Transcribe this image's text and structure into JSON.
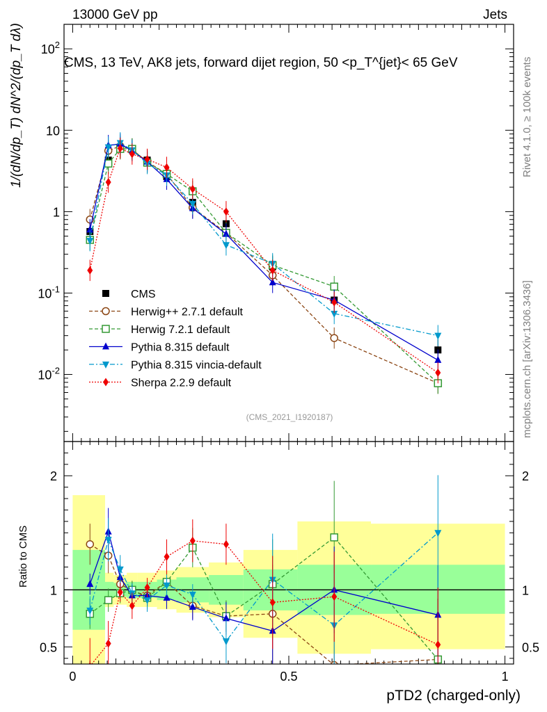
{
  "header": {
    "energy_label": "13000 GeV pp",
    "category_label": "Jets",
    "plot_title": "CMS, 13 TeV, AK8 jets, forward dijet region, 50 <p_T^{jet}< 65 GeV",
    "analysis_id": "(CMS_2021_I1920187)",
    "rivet_label": "Rivet 4.1.0, ≥ 100k events",
    "site_label": "mcplots.cern.ch [arXiv:1306.3436]"
  },
  "chart_data": [
    {
      "type": "scatter",
      "panel": "main",
      "ylabel": "1/(dN/dp_T) dN^2/(dp_T dλ)",
      "yscale": "log",
      "ylim": [
        0.0015,
        200
      ],
      "xlim": [
        -0.02,
        1.02
      ],
      "ytick_labels": [
        "10^{-2}",
        "10^{-1}",
        "1",
        "10",
        "10^{2}"
      ],
      "x": [
        0.04,
        0.0825,
        0.11,
        0.1375,
        0.1725,
        0.2175,
        0.2775,
        0.355,
        0.4625,
        0.605,
        0.845
      ],
      "series": [
        {
          "name": "CMS",
          "color": "#000000",
          "style": "data",
          "marker": "square",
          "values": [
            0.57,
            4.3,
            6.1,
            5.9,
            4.3,
            2.7,
            1.3,
            0.71,
            0.21,
            0.082,
            0.02
          ]
        },
        {
          "name": "Herwig++ 2.7.1 default",
          "color": "#8B4513",
          "style": "dashed",
          "marker": "open-circle",
          "values": [
            0.8,
            5.6,
            6.4,
            5.8,
            4.1,
            2.9,
            1.12,
            0.55,
            0.165,
            0.028,
            0.0078
          ]
        },
        {
          "name": "Herwig 7.2.1 default",
          "color": "#339933",
          "style": "dashed",
          "marker": "open-square",
          "values": [
            0.45,
            3.9,
            5.9,
            5.9,
            4.0,
            2.9,
            1.78,
            0.55,
            0.22,
            0.12,
            0.0078
          ]
        },
        {
          "name": "Pythia 8.315 default",
          "color": "#0000CC",
          "style": "solid",
          "marker": "triangle-up",
          "values": [
            0.6,
            6.5,
            6.8,
            5.6,
            4.1,
            2.5,
            1.1,
            0.53,
            0.135,
            0.082,
            0.015
          ]
        },
        {
          "name": "Pythia 8.315 vincia-default",
          "color": "#0099CC",
          "style": "dashdot",
          "marker": "triangle-down",
          "values": [
            0.44,
            6.2,
            7.0,
            5.7,
            3.9,
            2.8,
            1.25,
            0.39,
            0.23,
            0.056,
            0.03
          ]
        },
        {
          "name": "Sherpa 2.2.9 default",
          "color": "#EE0000",
          "style": "dotted",
          "marker": "diamond",
          "values": [
            0.19,
            2.3,
            6.0,
            5.1,
            4.4,
            3.5,
            1.9,
            1.0,
            0.19,
            0.077,
            0.0105
          ]
        }
      ]
    },
    {
      "type": "scatter",
      "panel": "ratio",
      "ylabel": "Ratio to CMS",
      "xlabel": "pTD2 (charged-only)",
      "ylim": [
        0.35,
        2.3
      ],
      "yticks": [
        0.5,
        1,
        2
      ],
      "ytick_labels": [
        "0.5",
        "1",
        "2"
      ],
      "xticks": [
        0,
        0.5,
        1
      ],
      "xtick_labels": [
        "0",
        "0.5",
        "1"
      ],
      "reference_line": 1,
      "bands": [
        {
          "x0": 0.0,
          "x1": 0.075,
          "stat_sys_lo": 0.0,
          "stat_sys_hi": 1.83,
          "stat_lo": 0.65,
          "stat_hi": 1.35
        },
        {
          "x0": 0.075,
          "x1": 0.095,
          "stat_sys_lo": 0.85,
          "stat_sys_hi": 1.15,
          "stat_lo": 0.93,
          "stat_hi": 1.07
        },
        {
          "x0": 0.095,
          "x1": 0.125,
          "stat_sys_lo": 0.87,
          "stat_sys_hi": 1.13,
          "stat_lo": 0.94,
          "stat_hi": 1.06
        },
        {
          "x0": 0.125,
          "x1": 0.15,
          "stat_sys_lo": 0.85,
          "stat_sys_hi": 1.15,
          "stat_lo": 0.93,
          "stat_hi": 1.07
        },
        {
          "x0": 0.15,
          "x1": 0.195,
          "stat_sys_lo": 0.85,
          "stat_sys_hi": 1.15,
          "stat_lo": 0.93,
          "stat_hi": 1.07
        },
        {
          "x0": 0.195,
          "x1": 0.24,
          "stat_sys_lo": 0.83,
          "stat_sys_hi": 1.17,
          "stat_lo": 0.91,
          "stat_hi": 1.09
        },
        {
          "x0": 0.24,
          "x1": 0.315,
          "stat_sys_lo": 0.8,
          "stat_sys_hi": 1.2,
          "stat_lo": 0.89,
          "stat_hi": 1.11
        },
        {
          "x0": 0.315,
          "x1": 0.395,
          "stat_sys_lo": 0.76,
          "stat_sys_hi": 1.24,
          "stat_lo": 0.87,
          "stat_hi": 1.13
        },
        {
          "x0": 0.395,
          "x1": 0.52,
          "stat_sys_lo": 0.58,
          "stat_sys_hi": 1.35,
          "stat_lo": 0.82,
          "stat_hi": 1.18
        },
        {
          "x0": 0.52,
          "x1": 0.69,
          "stat_sys_lo": 0.44,
          "stat_sys_hi": 1.6,
          "stat_lo": 0.78,
          "stat_hi": 1.22
        },
        {
          "x0": 0.69,
          "x1": 1.0,
          "stat_sys_lo": 0.48,
          "stat_sys_hi": 1.58,
          "stat_lo": 0.79,
          "stat_hi": 1.22
        }
      ],
      "x": [
        0.04,
        0.0825,
        0.11,
        0.1375,
        0.1725,
        0.2175,
        0.2775,
        0.355,
        0.4625,
        0.605,
        0.845
      ],
      "series": [
        {
          "name": "Herwig++ 2.7.1 default",
          "color": "#8B4513",
          "style": "dashed",
          "marker": "open-circle",
          "values": [
            1.4,
            1.3,
            1.05,
            0.99,
            0.95,
            1.07,
            0.86,
            0.77,
            0.79,
            0.34,
            0.39
          ]
        },
        {
          "name": "Herwig 7.2.1 default",
          "color": "#339933",
          "style": "dashed",
          "marker": "open-square",
          "values": [
            0.79,
            0.91,
            0.97,
            1.0,
            0.93,
            1.07,
            1.37,
            0.77,
            1.05,
            1.46,
            0.39
          ]
        },
        {
          "name": "Pythia 8.315 default",
          "color": "#0000CC",
          "style": "solid",
          "marker": "triangle-up",
          "values": [
            1.05,
            1.51,
            1.11,
            0.95,
            0.95,
            0.93,
            0.85,
            0.75,
            0.64,
            1.0,
            0.78
          ]
        },
        {
          "name": "Pythia 8.315 vincia-default",
          "color": "#0099CC",
          "style": "dashdot",
          "marker": "triangle-down",
          "values": [
            0.82,
            1.44,
            1.18,
            0.97,
            0.91,
            1.04,
            0.96,
            0.55,
            1.09,
            0.69,
            1.5
          ]
        },
        {
          "name": "Sherpa 2.2.9 default",
          "color": "#EE0000",
          "style": "dotted",
          "marker": "diamond",
          "values": [
            0.33,
            0.53,
            0.98,
            0.86,
            1.02,
            1.29,
            1.43,
            1.4,
            0.89,
            0.94,
            0.52
          ]
        }
      ]
    }
  ]
}
